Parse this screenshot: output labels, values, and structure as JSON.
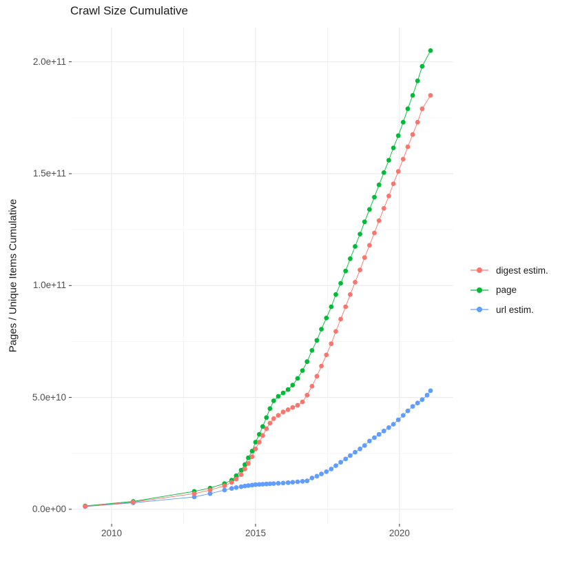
{
  "chart_data": {
    "type": "scatter",
    "title": "Crawl Size Cumulative",
    "xlabel": "",
    "ylabel": "Pages / Unique Items Cumulative",
    "legend_position": "right",
    "grid": true,
    "value_unit": "billions (1e9) of pages / unique items",
    "x_axis": {
      "range": [
        2008.61,
        2021.87
      ],
      "major_ticks": [
        2010,
        2015,
        2020
      ],
      "tick_labels": [
        "2010",
        "2015",
        "2020"
      ],
      "minor_ticks": [
        2012.5,
        2017.5
      ]
    },
    "y_axis": {
      "range_billions": [
        -6.5,
        215.3
      ],
      "major_ticks_billions": [
        0,
        50,
        100,
        150,
        200
      ],
      "tick_labels": [
        "0.0e+00",
        "5.0e+10",
        "1.0e+11",
        "1.5e+11",
        "2.0e+11"
      ],
      "minor_ticks_billions": [
        25,
        75,
        125,
        175
      ]
    },
    "series": [
      {
        "name": "digest estim.",
        "color": "#F8766D",
        "points": [
          [
            2009.08,
            1.3
          ],
          [
            2010.75,
            3.2
          ],
          [
            2012.87,
            7
          ],
          [
            2013.42,
            8.6
          ],
          [
            2013.92,
            10.5
          ],
          [
            2014.17,
            12
          ],
          [
            2014.33,
            13.5
          ],
          [
            2014.5,
            15.5
          ],
          [
            2014.63,
            18
          ],
          [
            2014.75,
            20.5
          ],
          [
            2014.88,
            23.5
          ],
          [
            2015.0,
            27
          ],
          [
            2015.13,
            30
          ],
          [
            2015.25,
            33
          ],
          [
            2015.38,
            36
          ],
          [
            2015.5,
            38.5
          ],
          [
            2015.63,
            40.5
          ],
          [
            2015.79,
            42
          ],
          [
            2015.96,
            43.5
          ],
          [
            2016.13,
            44.5
          ],
          [
            2016.29,
            45.5
          ],
          [
            2016.46,
            46.5
          ],
          [
            2016.63,
            48
          ],
          [
            2016.79,
            51
          ],
          [
            2016.96,
            55
          ],
          [
            2017.13,
            59.5
          ],
          [
            2017.29,
            64
          ],
          [
            2017.46,
            69
          ],
          [
            2017.63,
            74
          ],
          [
            2017.79,
            79.5
          ],
          [
            2017.96,
            85
          ],
          [
            2018.13,
            90.5
          ],
          [
            2018.29,
            96
          ],
          [
            2018.46,
            101.5
          ],
          [
            2018.63,
            107
          ],
          [
            2018.79,
            112.5
          ],
          [
            2018.96,
            118
          ],
          [
            2019.13,
            123.5
          ],
          [
            2019.29,
            129
          ],
          [
            2019.46,
            134.5
          ],
          [
            2019.63,
            140
          ],
          [
            2019.79,
            145.5
          ],
          [
            2019.96,
            151
          ],
          [
            2020.13,
            156.5
          ],
          [
            2020.29,
            162
          ],
          [
            2020.46,
            167.5
          ],
          [
            2020.63,
            173
          ],
          [
            2020.79,
            179
          ],
          [
            2021.08,
            185
          ]
        ]
      },
      {
        "name": "page",
        "color": "#00BA38",
        "points": [
          [
            2009.08,
            1.5
          ],
          [
            2010.75,
            3.5
          ],
          [
            2012.87,
            8
          ],
          [
            2013.42,
            9.5
          ],
          [
            2013.92,
            11.5
          ],
          [
            2014.17,
            13
          ],
          [
            2014.33,
            15
          ],
          [
            2014.5,
            17.5
          ],
          [
            2014.63,
            20
          ],
          [
            2014.75,
            23
          ],
          [
            2014.88,
            26
          ],
          [
            2015.0,
            30
          ],
          [
            2015.13,
            33.5
          ],
          [
            2015.25,
            37
          ],
          [
            2015.38,
            41
          ],
          [
            2015.5,
            45
          ],
          [
            2015.63,
            48.5
          ],
          [
            2015.79,
            50.5
          ],
          [
            2015.96,
            52
          ],
          [
            2016.13,
            53.5
          ],
          [
            2016.29,
            55.5
          ],
          [
            2016.46,
            58.5
          ],
          [
            2016.63,
            62
          ],
          [
            2016.79,
            66
          ],
          [
            2016.96,
            71
          ],
          [
            2017.13,
            75.5
          ],
          [
            2017.29,
            80.5
          ],
          [
            2017.46,
            85.5
          ],
          [
            2017.63,
            90.5
          ],
          [
            2017.79,
            96
          ],
          [
            2017.96,
            101
          ],
          [
            2018.13,
            106.5
          ],
          [
            2018.29,
            112
          ],
          [
            2018.46,
            117.5
          ],
          [
            2018.63,
            123
          ],
          [
            2018.79,
            128.5
          ],
          [
            2018.96,
            134
          ],
          [
            2019.13,
            139.5
          ],
          [
            2019.29,
            145
          ],
          [
            2019.46,
            150.5
          ],
          [
            2019.63,
            156
          ],
          [
            2019.79,
            161.5
          ],
          [
            2019.96,
            167
          ],
          [
            2020.13,
            173
          ],
          [
            2020.29,
            179
          ],
          [
            2020.46,
            185
          ],
          [
            2020.63,
            191.5
          ],
          [
            2020.79,
            198
          ],
          [
            2021.08,
            205
          ]
        ]
      },
      {
        "name": "url estim.",
        "color": "#619CFF",
        "points": [
          [
            2009.08,
            1.2
          ],
          [
            2010.75,
            2.9
          ],
          [
            2012.87,
            5.5
          ],
          [
            2013.42,
            7
          ],
          [
            2013.92,
            8.6
          ],
          [
            2014.17,
            9.3
          ],
          [
            2014.33,
            9.7
          ],
          [
            2014.5,
            10.1
          ],
          [
            2014.63,
            10.4
          ],
          [
            2014.75,
            10.6
          ],
          [
            2014.88,
            10.8
          ],
          [
            2015.0,
            11.0
          ],
          [
            2015.13,
            11.1
          ],
          [
            2015.25,
            11.2
          ],
          [
            2015.38,
            11.3
          ],
          [
            2015.5,
            11.4
          ],
          [
            2015.63,
            11.5
          ],
          [
            2015.79,
            11.6
          ],
          [
            2015.96,
            11.7
          ],
          [
            2016.13,
            11.9
          ],
          [
            2016.29,
            12.1
          ],
          [
            2016.46,
            12.3
          ],
          [
            2016.63,
            12.5
          ],
          [
            2016.79,
            12.7
          ],
          [
            2016.96,
            14
          ],
          [
            2017.13,
            14.8
          ],
          [
            2017.29,
            15.8
          ],
          [
            2017.46,
            16.8
          ],
          [
            2017.63,
            18
          ],
          [
            2017.79,
            19.5
          ],
          [
            2017.96,
            21
          ],
          [
            2018.13,
            22.5
          ],
          [
            2018.29,
            24
          ],
          [
            2018.46,
            25.5
          ],
          [
            2018.63,
            27
          ],
          [
            2018.79,
            28.5
          ],
          [
            2018.96,
            30.5
          ],
          [
            2019.13,
            32
          ],
          [
            2019.29,
            33.5
          ],
          [
            2019.46,
            35
          ],
          [
            2019.63,
            36.5
          ],
          [
            2019.79,
            38
          ],
          [
            2019.96,
            40
          ],
          [
            2020.13,
            42
          ],
          [
            2020.29,
            44
          ],
          [
            2020.46,
            46
          ],
          [
            2020.63,
            47.5
          ],
          [
            2020.79,
            49
          ],
          [
            2020.96,
            51
          ],
          [
            2021.08,
            53
          ]
        ]
      }
    ]
  },
  "colors": {
    "background": "#FFFFFF",
    "grid_major": "#EBEBEB",
    "grid_minor": "#F5F5F5",
    "tick_mark": "#333333",
    "tick_text": "#4D4D4D",
    "title_text": "#1A1A1A"
  },
  "layout_note": "ggplot2-style scatter plot with connecting lines, legend at right"
}
